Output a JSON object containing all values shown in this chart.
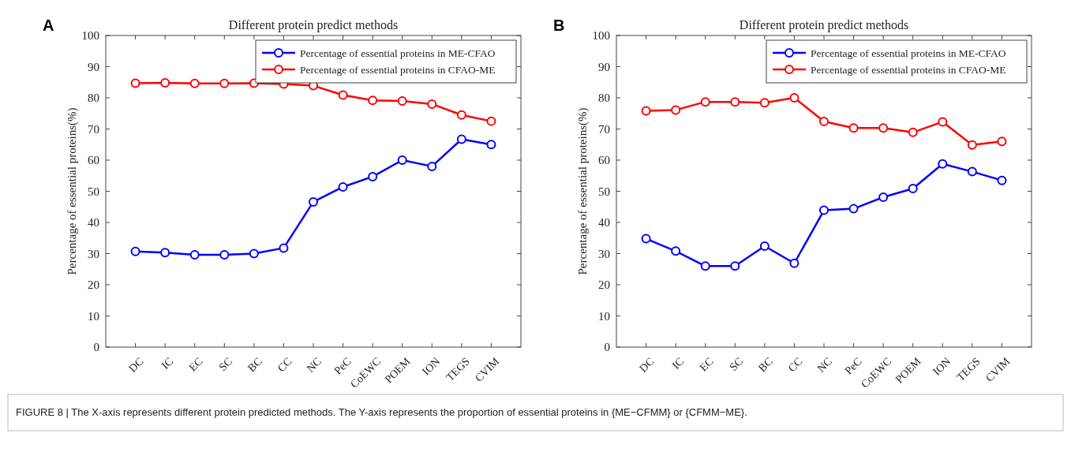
{
  "chart_data": [
    {
      "type": "line",
      "title": "Different protein predict methods",
      "ylabel": "Percentage of essential proteins(%)",
      "annotations": [
        "A"
      ],
      "categories": [
        "DC",
        "IC",
        "EC",
        "SC",
        "BC",
        "CC",
        "NC",
        "PeC",
        "CoEWC",
        "POEM",
        "ION",
        "TEGS",
        "CVIM"
      ],
      "series": [
        {
          "name": "Percentage of essential proteins in ME-CFAO",
          "color": "#0000ff",
          "values": [
            30.7,
            30.3,
            29.6,
            29.6,
            30.0,
            31.8,
            46.6,
            51.4,
            54.7,
            60.0,
            58.0,
            66.7,
            65.0
          ]
        },
        {
          "name": "Percentage of essential proteins in CFAO-ME",
          "color": "#ff0000",
          "values": [
            84.7,
            84.8,
            84.6,
            84.6,
            84.7,
            84.4,
            83.9,
            80.9,
            79.2,
            79.0,
            78.0,
            74.5,
            72.5
          ]
        }
      ],
      "ylim": [
        0,
        100
      ],
      "yticks": [
        0,
        10,
        20,
        30,
        40,
        50,
        60,
        70,
        80,
        90,
        100
      ],
      "grid": false,
      "legend": "top right",
      "marker": "circle"
    },
    {
      "type": "line",
      "title": "Different protein predict methods",
      "ylabel": "Percentage of essential proteins(%)",
      "annotations": [
        "B",
        "FIGURE 8 | The X-axis represents different protein predicted methods. The Y-axis represents the proportion of essential proteins in {ME−CFMM} or {CFMM−ME}."
      ],
      "categories": [
        "DC",
        "IC",
        "EC",
        "SC",
        "BC",
        "CC",
        "NC",
        "PeC",
        "CoEWC",
        "POEM",
        "ION",
        "TEGS",
        "CVIM"
      ],
      "series": [
        {
          "name": "Percentage of essential proteins in ME-CFAO",
          "color": "#0000ff",
          "values": [
            34.8,
            30.8,
            26.0,
            26.0,
            32.4,
            26.9,
            43.9,
            44.4,
            48.1,
            50.9,
            58.8,
            56.3,
            53.5
          ]
        },
        {
          "name": "Percentage of essential proteins in CFAO-ME",
          "color": "#ff0000",
          "values": [
            75.8,
            76.1,
            78.7,
            78.7,
            78.4,
            80.0,
            72.4,
            70.3,
            70.3,
            68.9,
            72.3,
            64.9,
            66.0
          ]
        }
      ],
      "ylim": [
        0,
        100
      ],
      "yticks": [
        0,
        10,
        20,
        30,
        40,
        50,
        60,
        70,
        80,
        90,
        100
      ],
      "grid": false,
      "legend": "top right",
      "marker": "circle"
    }
  ]
}
